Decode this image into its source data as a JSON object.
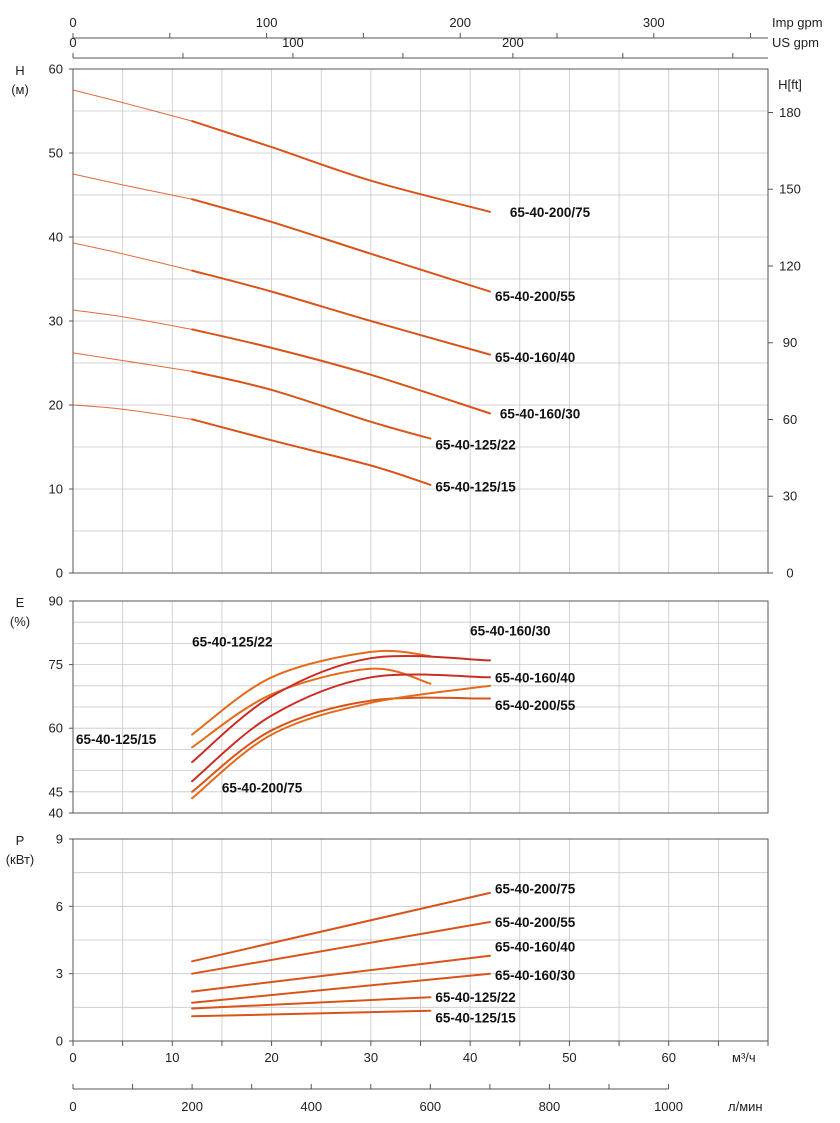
{
  "chart_data": {
    "type": "line",
    "top_axes": [
      {
        "label": "Imp gpm",
        "ticks": [
          0,
          100,
          200,
          300
        ],
        "range": [
          0,
          359
        ]
      },
      {
        "label": "US gpm",
        "ticks": [
          0,
          100,
          200
        ],
        "range": [
          0,
          316
        ]
      }
    ],
    "bottom_axes": [
      {
        "label": "м³/ч",
        "ticks": [
          0,
          10,
          20,
          30,
          40,
          50,
          60
        ],
        "range": [
          0,
          70
        ]
      },
      {
        "label": "л/мин",
        "ticks": [
          0,
          200,
          400,
          600,
          800,
          1000
        ],
        "range": [
          0,
          1167
        ]
      }
    ],
    "panels": [
      {
        "id": "head",
        "ylabel": [
          "H",
          "(м)"
        ],
        "ylim": [
          0,
          60
        ],
        "yticks": [
          0,
          10,
          20,
          30,
          40,
          50,
          60
        ],
        "ylabel_right": "H[ft]",
        "yticks_right": [
          0,
          30,
          60,
          90,
          120,
          150,
          180
        ],
        "ylim_right": [
          0,
          197
        ],
        "series": [
          {
            "name": "65-40-200/75",
            "color": "#d9541a",
            "x": [
              0,
              5,
              12,
              20,
              30,
              42
            ],
            "y": [
              57.5,
              56.0,
              53.8,
              50.7,
              46.7,
              43.0
            ],
            "label_xy": [
              44,
              43.0
            ]
          },
          {
            "name": "65-40-200/55",
            "color": "#d9541a",
            "x": [
              0,
              5,
              12,
              20,
              30,
              42
            ],
            "y": [
              47.5,
              46.2,
              44.5,
              41.8,
              38.0,
              33.5
            ],
            "label_xy": [
              42.5,
              33.0
            ]
          },
          {
            "name": "65-40-160/40",
            "color": "#d9541a",
            "x": [
              0,
              5,
              12,
              20,
              30,
              42
            ],
            "y": [
              39.3,
              38.0,
              36.0,
              33.5,
              30.0,
              26.0
            ],
            "label_xy": [
              42.5,
              25.7
            ]
          },
          {
            "name": "65-40-160/30",
            "color": "#d9541a",
            "x": [
              0,
              5,
              12,
              20,
              30,
              42
            ],
            "y": [
              31.3,
              30.5,
              29.0,
              26.8,
              23.6,
              19.0
            ],
            "label_xy": [
              43,
              19.0
            ]
          },
          {
            "name": "65-40-125/22",
            "color": "#d9541a",
            "x": [
              0,
              5,
              12,
              20,
              30,
              36
            ],
            "y": [
              26.2,
              25.3,
              24.0,
              21.8,
              18.0,
              16.0
            ],
            "label_xy": [
              36.5,
              15.3
            ]
          },
          {
            "name": "65-40-125/15",
            "color": "#d9541a",
            "x": [
              0,
              5,
              12,
              20,
              30,
              36
            ],
            "y": [
              20.0,
              19.5,
              18.3,
              15.8,
              12.8,
              10.5
            ],
            "label_xy": [
              36.5,
              10.3
            ]
          }
        ]
      },
      {
        "id": "efficiency",
        "ylabel": [
          "E",
          "(%)"
        ],
        "ylim": [
          40,
          90
        ],
        "yticks": [
          40,
          45,
          60,
          75,
          90
        ],
        "series": [
          {
            "name": "65-40-125/22",
            "color": "#e46a1c",
            "x": [
              12,
              20,
              30,
              36
            ],
            "y": [
              58.5,
              72.0,
              78.0,
              77.0
            ],
            "label_xy": [
              12,
              80.5
            ]
          },
          {
            "name": "65-40-125/15",
            "color": "#e46a1c",
            "x": [
              12,
              20,
              30,
              36
            ],
            "y": [
              55.5,
              68.0,
              74.0,
              70.5
            ],
            "label_xy": [
              0.3,
              57.5
            ]
          },
          {
            "name": "65-40-160/30",
            "color": "#c92e26",
            "x": [
              12,
              20,
              30,
              42
            ],
            "y": [
              52.0,
              67.5,
              76.5,
              76.0
            ],
            "label_xy": [
              40,
              83.0
            ]
          },
          {
            "name": "65-40-160/40",
            "color": "#c92e26",
            "x": [
              12,
              20,
              30,
              42
            ],
            "y": [
              47.5,
              63.0,
              72.0,
              72.0
            ],
            "label_xy": [
              42.5,
              72.0
            ]
          },
          {
            "name": "65-40-200/55",
            "color": "#d9541a",
            "x": [
              12,
              20,
              30,
              42
            ],
            "y": [
              45.0,
              59.5,
              66.5,
              67.0
            ],
            "label_xy": [
              42.5,
              65.5
            ]
          },
          {
            "name": "65-40-200/75",
            "color": "#e46a1c",
            "x": [
              12,
              20,
              30,
              42
            ],
            "y": [
              43.5,
              58.5,
              66.0,
              70.0
            ],
            "label_xy": [
              15,
              46.0
            ]
          }
        ]
      },
      {
        "id": "power",
        "ylabel": [
          "P",
          "(кВт)"
        ],
        "ylim": [
          0,
          9
        ],
        "yticks": [
          0,
          3,
          6,
          9
        ],
        "series": [
          {
            "name": "65-40-200/75",
            "color": "#d9541a",
            "x": [
              12,
              42
            ],
            "y": [
              3.55,
              6.6
            ],
            "label_xy": [
              42.5,
              6.8
            ]
          },
          {
            "name": "65-40-200/55",
            "color": "#d9541a",
            "x": [
              12,
              42
            ],
            "y": [
              3.0,
              5.3
            ],
            "label_xy": [
              42.5,
              5.3
            ]
          },
          {
            "name": "65-40-160/40",
            "color": "#d9541a",
            "x": [
              12,
              42
            ],
            "y": [
              2.2,
              3.8
            ],
            "label_xy": [
              42.5,
              4.2
            ]
          },
          {
            "name": "65-40-160/30",
            "color": "#d9541a",
            "x": [
              12,
              42
            ],
            "y": [
              1.7,
              3.0
            ],
            "label_xy": [
              42.5,
              2.95
            ]
          },
          {
            "name": "65-40-125/22",
            "color": "#d9541a",
            "x": [
              12,
              36
            ],
            "y": [
              1.45,
              1.95
            ],
            "label_xy": [
              36.5,
              1.95
            ]
          },
          {
            "name": "65-40-125/15",
            "color": "#d9541a",
            "x": [
              12,
              36
            ],
            "y": [
              1.1,
              1.35
            ],
            "label_xy": [
              36.5,
              1.05
            ]
          }
        ]
      }
    ]
  }
}
